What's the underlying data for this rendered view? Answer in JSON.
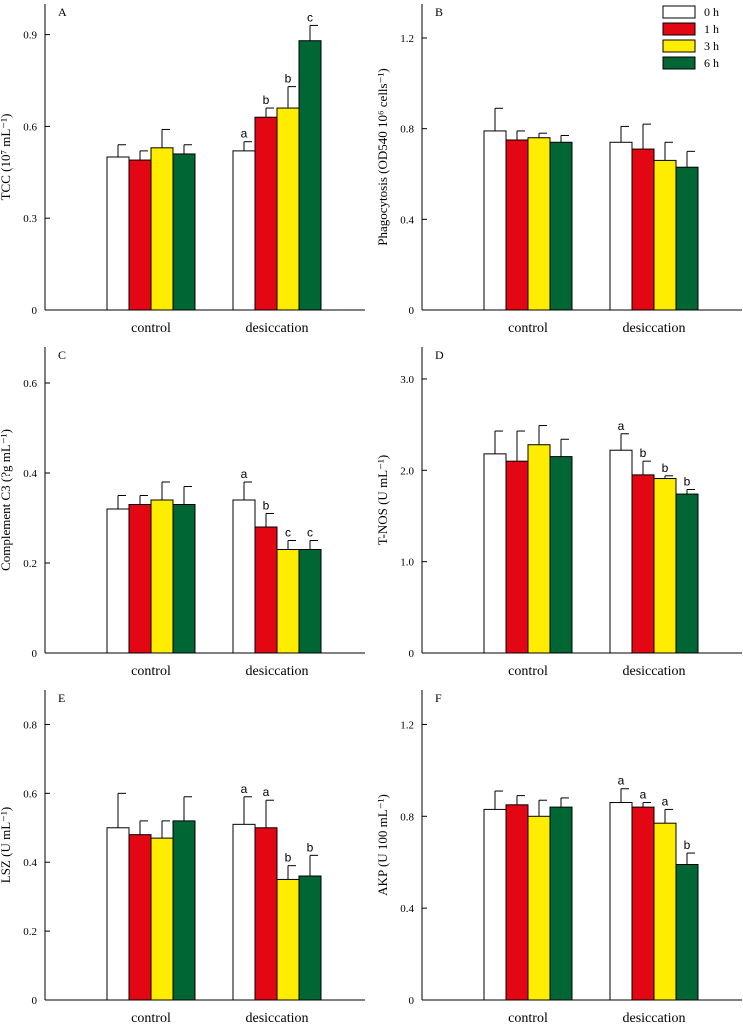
{
  "colors": {
    "0 h": "#ffffff",
    "1 h": "#e30613",
    "3 h": "#ffed00",
    "6 h": "#006633"
  },
  "legend": [
    "0 h",
    "1 h",
    "3 h",
    "6 h"
  ],
  "chart_data": [
    {
      "type": "bar",
      "panel": "A",
      "ylabel": "TCC (10⁷ mL⁻¹)",
      "ylim": [
        0,
        1.0
      ],
      "yticks": [
        0,
        0.3,
        0.6,
        0.9
      ],
      "ytick_labels": [
        "0",
        "0.3",
        "0.6",
        "0.9"
      ],
      "categories": [
        "control",
        "desiccation"
      ],
      "series": [
        {
          "name": "0 h",
          "values": [
            0.5,
            0.52
          ],
          "errors": [
            0.04,
            0.03
          ],
          "labels": [
            "",
            "a"
          ]
        },
        {
          "name": "1 h",
          "values": [
            0.49,
            0.63
          ],
          "errors": [
            0.03,
            0.03
          ],
          "labels": [
            "",
            "b"
          ]
        },
        {
          "name": "3 h",
          "values": [
            0.53,
            0.66
          ],
          "errors": [
            0.06,
            0.07
          ],
          "labels": [
            "",
            "b"
          ]
        },
        {
          "name": "6 h",
          "values": [
            0.51,
            0.88
          ],
          "errors": [
            0.03,
            0.05
          ],
          "labels": [
            "",
            "c"
          ]
        }
      ]
    },
    {
      "type": "bar",
      "panel": "B",
      "ylabel": "Phagocytosis (OD540 10⁶ cells⁻¹)",
      "ylim": [
        0,
        1.35
      ],
      "yticks": [
        0,
        0.4,
        0.8,
        1.2
      ],
      "ytick_labels": [
        "0",
        "0.4",
        "0.8",
        "1.2"
      ],
      "categories": [
        "control",
        "desiccation"
      ],
      "series": [
        {
          "name": "0 h",
          "values": [
            0.79,
            0.74
          ],
          "errors": [
            0.1,
            0.07
          ],
          "labels": [
            "",
            ""
          ]
        },
        {
          "name": "1 h",
          "values": [
            0.75,
            0.71
          ],
          "errors": [
            0.04,
            0.11
          ],
          "labels": [
            "",
            ""
          ]
        },
        {
          "name": "3 h",
          "values": [
            0.76,
            0.66
          ],
          "errors": [
            0.02,
            0.08
          ],
          "labels": [
            "",
            ""
          ]
        },
        {
          "name": "6 h",
          "values": [
            0.74,
            0.63
          ],
          "errors": [
            0.03,
            0.07
          ],
          "labels": [
            "",
            ""
          ]
        }
      ]
    },
    {
      "type": "bar",
      "panel": "C",
      "ylabel": "Complement C3 (?g mL⁻¹)",
      "ylim": [
        0,
        0.68
      ],
      "yticks": [
        0,
        0.2,
        0.4,
        0.6
      ],
      "ytick_labels": [
        "0",
        "0.2",
        "0.4",
        "0.6"
      ],
      "categories": [
        "control",
        "desiccation"
      ],
      "series": [
        {
          "name": "0 h",
          "values": [
            0.32,
            0.34
          ],
          "errors": [
            0.03,
            0.04
          ],
          "labels": [
            "",
            "a"
          ]
        },
        {
          "name": "1 h",
          "values": [
            0.33,
            0.28
          ],
          "errors": [
            0.02,
            0.03
          ],
          "labels": [
            "",
            "b"
          ]
        },
        {
          "name": "3 h",
          "values": [
            0.34,
            0.23
          ],
          "errors": [
            0.04,
            0.02
          ],
          "labels": [
            "",
            "c"
          ]
        },
        {
          "name": "6 h",
          "values": [
            0.33,
            0.23
          ],
          "errors": [
            0.04,
            0.02
          ],
          "labels": [
            "",
            "c"
          ]
        }
      ]
    },
    {
      "type": "bar",
      "panel": "D",
      "ylabel": "T-NOS (U mL⁻¹)",
      "ylim": [
        0,
        3.35
      ],
      "yticks": [
        0,
        1.0,
        2.0,
        3.0
      ],
      "ytick_labels": [
        "0",
        "1.0",
        "2.0",
        "3.0"
      ],
      "categories": [
        "control",
        "desiccation"
      ],
      "series": [
        {
          "name": "0 h",
          "values": [
            2.18,
            2.22
          ],
          "errors": [
            0.25,
            0.18
          ],
          "labels": [
            "",
            "a"
          ]
        },
        {
          "name": "1 h",
          "values": [
            2.1,
            1.95
          ],
          "errors": [
            0.33,
            0.15
          ],
          "labels": [
            "",
            "b"
          ]
        },
        {
          "name": "3 h",
          "values": [
            2.28,
            1.91
          ],
          "errors": [
            0.21,
            0.03
          ],
          "labels": [
            "",
            "b"
          ]
        },
        {
          "name": "6 h",
          "values": [
            2.15,
            1.74
          ],
          "errors": [
            0.19,
            0.05
          ],
          "labels": [
            "",
            "b"
          ]
        }
      ]
    },
    {
      "type": "bar",
      "panel": "E",
      "ylabel": "LSZ (U mL⁻¹)",
      "ylim": [
        0,
        0.9
      ],
      "yticks": [
        0,
        0.2,
        0.4,
        0.6,
        0.8
      ],
      "ytick_labels": [
        "0",
        "0.2",
        "0.4",
        "0.6",
        "0.8"
      ],
      "categories": [
        "control",
        "desiccation"
      ],
      "series": [
        {
          "name": "0 h",
          "values": [
            0.5,
            0.51
          ],
          "errors": [
            0.1,
            0.08
          ],
          "labels": [
            "",
            "a"
          ]
        },
        {
          "name": "1 h",
          "values": [
            0.48,
            0.5
          ],
          "errors": [
            0.04,
            0.08
          ],
          "labels": [
            "",
            "a"
          ]
        },
        {
          "name": "3 h",
          "values": [
            0.47,
            0.35
          ],
          "errors": [
            0.05,
            0.04
          ],
          "labels": [
            "",
            "b"
          ]
        },
        {
          "name": "6 h",
          "values": [
            0.52,
            0.36
          ],
          "errors": [
            0.07,
            0.06
          ],
          "labels": [
            "",
            "b"
          ]
        }
      ]
    },
    {
      "type": "bar",
      "panel": "F",
      "ylabel": "AKP (U 100 mL⁻¹)",
      "ylim": [
        0,
        1.35
      ],
      "yticks": [
        0,
        0.4,
        0.8,
        1.2
      ],
      "ytick_labels": [
        "0",
        "0.4",
        "0.8",
        "1.2"
      ],
      "categories": [
        "control",
        "desiccation"
      ],
      "series": [
        {
          "name": "0 h",
          "values": [
            0.83,
            0.86
          ],
          "errors": [
            0.08,
            0.06
          ],
          "labels": [
            "",
            "a"
          ]
        },
        {
          "name": "1 h",
          "values": [
            0.85,
            0.84
          ],
          "errors": [
            0.04,
            0.02
          ],
          "labels": [
            "",
            "a"
          ]
        },
        {
          "name": "3 h",
          "values": [
            0.8,
            0.77
          ],
          "errors": [
            0.07,
            0.06
          ],
          "labels": [
            "",
            "a"
          ]
        },
        {
          "name": "6 h",
          "values": [
            0.84,
            0.59
          ],
          "errors": [
            0.04,
            0.05
          ],
          "labels": [
            "",
            "b"
          ]
        }
      ]
    }
  ]
}
